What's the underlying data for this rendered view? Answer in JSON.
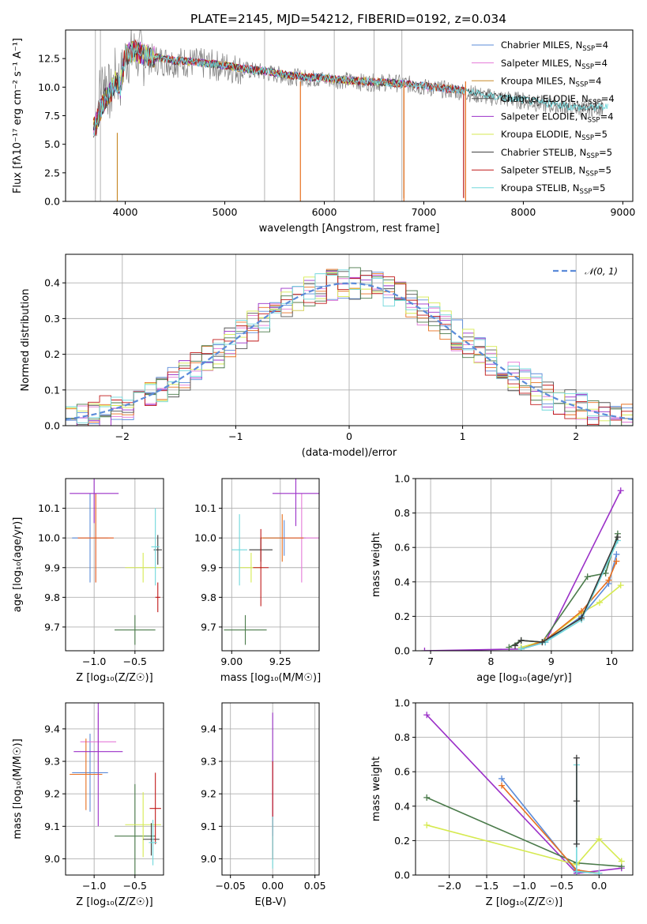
{
  "figure": {
    "title": "PLATE=2145, MJD=54212, FIBERID=0192, z=0.034"
  },
  "chart_data": [
    {
      "id": "spectrum",
      "type": "line",
      "xlabel": "wavelength [Angstrom, rest frame]",
      "ylabel": "Flux [fλ10⁻¹⁷ erg cm⁻² s⁻¹ A⁻¹]",
      "xlim": [
        3400,
        9100
      ],
      "ylim": [
        0,
        15
      ],
      "xticks": [
        4000,
        5000,
        6000,
        7000,
        8000,
        9000
      ],
      "yticks": [
        0.0,
        2.5,
        5.0,
        7.5,
        10.0,
        12.5
      ],
      "grid": false,
      "legend_position": "top-right",
      "data_curve": {
        "color": "#808080",
        "x": [
          3700,
          3750,
          3800,
          3850,
          3900,
          3950,
          4000,
          4100,
          4200,
          4300,
          4400,
          4500,
          4600,
          4800,
          5000,
          5200,
          5400,
          5600,
          5800,
          6000,
          6200,
          6400,
          6600,
          6800,
          7000,
          7200,
          7400,
          7600,
          7800,
          8000,
          8200,
          8400,
          8600,
          8800
        ],
        "y": [
          7,
          10,
          11,
          9,
          11,
          10.5,
          12.5,
          13,
          12.5,
          12.4,
          12.3,
          12.2,
          12.2,
          12,
          11.8,
          11.5,
          11.3,
          11,
          10.8,
          10.7,
          10.6,
          10.4,
          10.4,
          10.3,
          10,
          9.8,
          9.6,
          9.2,
          9,
          8.8,
          8.5,
          8.3,
          8.1,
          8.3
        ]
      },
      "model_curve": {
        "x": [
          3700,
          3750,
          3800,
          3850,
          3900,
          3950,
          4000,
          4100,
          4200,
          4300,
          4400,
          4500,
          4600,
          4800,
          5000,
          5200,
          5400,
          5600,
          5800,
          6000,
          6200,
          6400,
          6600,
          6800,
          7000,
          7200,
          7400,
          7600,
          7800,
          8000,
          8200,
          8400,
          8600,
          8800
        ],
        "y": [
          6.5,
          8,
          9,
          9.5,
          10.5,
          10,
          12.8,
          13.2,
          12.8,
          12.6,
          12.5,
          12.3,
          12.3,
          12.1,
          11.9,
          11.6,
          11.4,
          11.1,
          10.9,
          10.8,
          10.6,
          10.5,
          10.4,
          10.3,
          10.1,
          9.9,
          9.7,
          9.3,
          9.1,
          8.9,
          8.6,
          8.4,
          8.2,
          8.3
        ]
      },
      "series": [
        {
          "name": "Chabrier MILES, N",
          "sub": "SSP",
          "tail": "=4",
          "color": "#5b8bd9",
          "end_x": 7400
        },
        {
          "name": "Salpeter MILES, N",
          "sub": "SSP",
          "tail": "=4",
          "color": "#e47ad8",
          "end_x": 7400
        },
        {
          "name": "Kroupa MILES, N",
          "sub": "SSP",
          "tail": "=4",
          "color": "#c88a2a",
          "end_x": 7400
        },
        {
          "name": "Chabrier ELODIE, N",
          "sub": "SSP",
          "tail": "=4",
          "color": "#555555",
          "end_x": 6800
        },
        {
          "name": "Salpeter ELODIE, N",
          "sub": "SSP",
          "tail": "=4",
          "color": "#9b30c8",
          "end_x": 6800
        },
        {
          "name": "Kroupa ELODIE, N",
          "sub": "SSP",
          "tail": "=5",
          "color": "#d6ea50",
          "end_x": 6800
        },
        {
          "name": "Chabrier STELIB, N",
          "sub": "SSP",
          "tail": "=5",
          "color": "#3a3a3a",
          "end_x": 8800
        },
        {
          "name": "Salpeter STELIB, N",
          "sub": "SSP",
          "tail": "=5",
          "color": "#c01818",
          "end_x": 7400
        },
        {
          "name": "Kroupa STELIB, N",
          "sub": "SSP",
          "tail": "=5",
          "color": "#70d8dc",
          "end_x": 8850
        }
      ]
    },
    {
      "id": "residuals",
      "type": "line",
      "xlabel": "(data-model)/error",
      "ylabel": "Normed distribution",
      "xlim": [
        -2.5,
        2.5
      ],
      "ylim": [
        0,
        0.48
      ],
      "xticks": [
        -2,
        -1,
        0,
        1,
        2
      ],
      "yticks": [
        0.0,
        0.1,
        0.2,
        0.3,
        0.4
      ],
      "grid": true,
      "legend": "𝒩(0, 1)",
      "legend_position": "top-right",
      "normal_color": "#5b8bd9"
    },
    {
      "id": "age_vs_Z",
      "type": "scatter",
      "xlabel": "Z [log₁₀(Z/Z☉)]",
      "ylabel": "age  [log₁₀(age/yr)]",
      "xlim": [
        -1.35,
        -0.15
      ],
      "ylim": [
        9.62,
        10.2
      ],
      "xticks": [
        -1.0,
        -0.5
      ],
      "yticks": [
        9.7,
        9.8,
        9.9,
        10.0,
        10.1
      ],
      "grid": true,
      "points": [
        {
          "x": -1.05,
          "y": 10.0,
          "xerr": 0.22,
          "yerr": 0.15,
          "color": "#5b8bd9"
        },
        {
          "x": -0.98,
          "y": 10.0,
          "xerr": 0.22,
          "yerr": 0.15,
          "color": "#e47ad8"
        },
        {
          "x": -0.98,
          "y": 10.0,
          "xerr": 0.22,
          "yerr": 0.15,
          "color": "#e87020"
        },
        {
          "x": -1.0,
          "y": 10.15,
          "xerr": 0.3,
          "yerr": 0.1,
          "color": "#9b30c8"
        },
        {
          "x": -0.5,
          "y": 9.69,
          "xerr": 0.25,
          "yerr": 0.05,
          "color": "#4a7a4a"
        },
        {
          "x": -0.4,
          "y": 9.9,
          "xerr": 0.22,
          "yerr": 0.05,
          "color": "#d6ea50"
        },
        {
          "x": -0.22,
          "y": 9.96,
          "xerr": 0.05,
          "yerr": 0.05,
          "color": "#3a3a3a"
        },
        {
          "x": -0.22,
          "y": 9.8,
          "xerr": 0.03,
          "yerr": 0.05,
          "color": "#c01818"
        },
        {
          "x": -0.25,
          "y": 9.97,
          "xerr": 0.05,
          "yerr": 0.13,
          "color": "#70d8dc"
        }
      ]
    },
    {
      "id": "age_vs_mass",
      "type": "scatter",
      "xlabel": "mass [log₁₀(M/M☉)]",
      "ylabel": "",
      "xlim": [
        8.95,
        9.45
      ],
      "ylim": [
        9.62,
        10.2
      ],
      "xticks": [
        9.0,
        9.25
      ],
      "yticks": [
        9.7,
        9.8,
        9.9,
        10.0,
        10.1
      ],
      "grid": true,
      "points": [
        {
          "x": 9.27,
          "y": 10.0,
          "xerr": 0.11,
          "yerr": 0.06,
          "color": "#5b8bd9"
        },
        {
          "x": 9.36,
          "y": 10.0,
          "xerr": 0.11,
          "yerr": 0.15,
          "color": "#e47ad8"
        },
        {
          "x": 9.26,
          "y": 10.0,
          "xerr": 0.11,
          "yerr": 0.08,
          "color": "#e87020"
        },
        {
          "x": 9.33,
          "y": 10.15,
          "xerr": 0.12,
          "yerr": 0.11,
          "color": "#9b30c8"
        },
        {
          "x": 9.07,
          "y": 9.69,
          "xerr": 0.11,
          "yerr": 0.05,
          "color": "#4a7a4a"
        },
        {
          "x": 9.1,
          "y": 9.9,
          "xerr": 0.06,
          "yerr": 0.05,
          "color": "#d6ea50"
        },
        {
          "x": 9.15,
          "y": 9.96,
          "xerr": 0.06,
          "yerr": 0.04,
          "color": "#3a3a3a"
        },
        {
          "x": 9.15,
          "y": 9.9,
          "xerr": 0.04,
          "yerr": 0.13,
          "color": "#c01818"
        },
        {
          "x": 9.04,
          "y": 9.96,
          "xerr": 0.04,
          "yerr": 0.12,
          "color": "#70d8dc"
        }
      ]
    },
    {
      "id": "weight_vs_age",
      "type": "line",
      "xlabel": "age  [log₁₀(age/yr)]",
      "ylabel": "mass weight",
      "xlim": [
        6.75,
        10.35
      ],
      "ylim": [
        0,
        1.0
      ],
      "xticks": [
        7,
        8,
        9,
        10
      ],
      "yticks": [
        0.0,
        0.2,
        0.4,
        0.6,
        0.8,
        1.0
      ],
      "grid": true,
      "series": [
        {
          "color": "#9b30c8",
          "x": [
            6.9,
            8.5,
            8.9,
            10.15
          ],
          "y": [
            0.0,
            0.01,
            0.05,
            0.93
          ]
        },
        {
          "color": "#4a7a4a",
          "x": [
            8.3,
            8.5,
            8.85,
            9.6,
            9.9,
            10.1
          ],
          "y": [
            0.02,
            0.06,
            0.05,
            0.43,
            0.45,
            0.68
          ]
        },
        {
          "color": "#d6ea50",
          "x": [
            8.5,
            8.9,
            9.5,
            9.8,
            10.15
          ],
          "y": [
            0.02,
            0.06,
            0.22,
            0.28,
            0.38
          ]
        },
        {
          "color": "#5b8bd9",
          "x": [
            8.5,
            8.9,
            9.5,
            9.95,
            10.08
          ],
          "y": [
            0.01,
            0.05,
            0.2,
            0.39,
            0.56
          ]
        },
        {
          "color": "#e87020",
          "x": [
            8.5,
            8.9,
            9.5,
            9.95,
            10.08
          ],
          "y": [
            0.01,
            0.06,
            0.23,
            0.41,
            0.52
          ]
        },
        {
          "color": "#70d8dc",
          "x": [
            8.5,
            8.9,
            9.5,
            10.1
          ],
          "y": [
            0.01,
            0.05,
            0.18,
            0.64
          ]
        },
        {
          "color": "#3a3a3a",
          "x": [
            8.4,
            8.5,
            8.85,
            9.5,
            10.1
          ],
          "y": [
            0.03,
            0.06,
            0.05,
            0.19,
            0.66
          ]
        }
      ]
    },
    {
      "id": "mass_vs_Z",
      "type": "scatter",
      "xlabel": "Z [log₁₀(Z/Z☉)]",
      "ylabel": "mass [log₁₀(M/M☉)]",
      "xlim": [
        -1.35,
        -0.15
      ],
      "ylim": [
        8.95,
        9.48
      ],
      "xticks": [
        -1.0,
        -0.5
      ],
      "yticks": [
        9.0,
        9.1,
        9.2,
        9.3,
        9.4
      ],
      "grid": true,
      "points": [
        {
          "x": -1.05,
          "y": 9.265,
          "xerr": 0.22,
          "yerr": 0.12,
          "color": "#5b8bd9"
        },
        {
          "x": -0.95,
          "y": 9.36,
          "xerr": 0.22,
          "yerr": 0.09,
          "color": "#e47ad8"
        },
        {
          "x": -1.1,
          "y": 9.26,
          "xerr": 0.2,
          "yerr": 0.11,
          "color": "#e87020"
        },
        {
          "x": -0.95,
          "y": 9.33,
          "xerr": 0.3,
          "yerr": 0.23,
          "color": "#9b30c8"
        },
        {
          "x": -0.5,
          "y": 9.07,
          "xerr": 0.25,
          "yerr": 0.16,
          "color": "#4a7a4a"
        },
        {
          "x": -0.4,
          "y": 9.105,
          "xerr": 0.22,
          "yerr": 0.1,
          "color": "#d6ea50"
        },
        {
          "x": -0.3,
          "y": 9.06,
          "xerr": 0.1,
          "yerr": 0.05,
          "color": "#3a3a3a"
        },
        {
          "x": -0.25,
          "y": 9.155,
          "xerr": 0.07,
          "yerr": 0.11,
          "color": "#c01818"
        },
        {
          "x": -0.28,
          "y": 9.05,
          "xerr": 0.05,
          "yerr": 0.07,
          "color": "#70d8dc"
        }
      ]
    },
    {
      "id": "mass_vs_EBV",
      "type": "scatter",
      "xlabel": "E(B-V)",
      "ylabel": "",
      "xlim": [
        -0.06,
        0.055
      ],
      "ylim": [
        8.95,
        9.48
      ],
      "xticks": [
        -0.05,
        0.0,
        0.05
      ],
      "yticks": [
        9.0,
        9.1,
        9.2,
        9.3,
        9.4
      ],
      "grid": true,
      "points": [
        {
          "x": 0.0,
          "y": 9.26,
          "xerr": 0,
          "yerr": 0.19,
          "color": "#9b30c8"
        },
        {
          "x": 0.0,
          "y": 9.15,
          "xerr": 0,
          "yerr": 0.15,
          "color": "#c01818"
        },
        {
          "x": 0.0,
          "y": 9.05,
          "xerr": 0,
          "yerr": 0.08,
          "color": "#70d8dc"
        }
      ]
    },
    {
      "id": "weight_vs_Z",
      "type": "line",
      "xlabel": "Z [log₁₀(Z/Z☉)]",
      "ylabel": "mass weight",
      "xlim": [
        -2.45,
        0.45
      ],
      "ylim": [
        0,
        1.0
      ],
      "xticks": [
        -2.0,
        -1.5,
        -1.0,
        -0.5,
        0.0
      ],
      "yticks": [
        0.0,
        0.2,
        0.4,
        0.6,
        0.8,
        1.0
      ],
      "grid": true,
      "series": [
        {
          "color": "#9b30c8",
          "x": [
            -2.3,
            -0.3,
            0.3
          ],
          "y": [
            0.93,
            0.01,
            0.04
          ]
        },
        {
          "color": "#4a7a4a",
          "x": [
            -2.3,
            -0.3,
            0.3
          ],
          "y": [
            0.45,
            0.07,
            0.05
          ]
        },
        {
          "color": "#d6ea50",
          "x": [
            -2.3,
            -0.3,
            0.0,
            0.3
          ],
          "y": [
            0.29,
            0.06,
            0.21,
            0.08
          ]
        },
        {
          "color": "#5b8bd9",
          "x": [
            -1.3,
            -0.3,
            0.0
          ],
          "y": [
            0.56,
            0.02,
            0.01
          ]
        },
        {
          "color": "#e87020",
          "x": [
            -1.3,
            -0.3,
            0.0
          ],
          "y": [
            0.52,
            0.03,
            0.01
          ]
        },
        {
          "color": "#70d8dc",
          "x": [
            -0.3,
            -0.3,
            0.0
          ],
          "y": [
            0.64,
            0.02,
            0.01
          ]
        },
        {
          "color": "#3a3a3a",
          "x": [
            -0.3,
            -0.3,
            -0.3
          ],
          "y": [
            0.68,
            0.43,
            0.18
          ]
        }
      ]
    }
  ]
}
